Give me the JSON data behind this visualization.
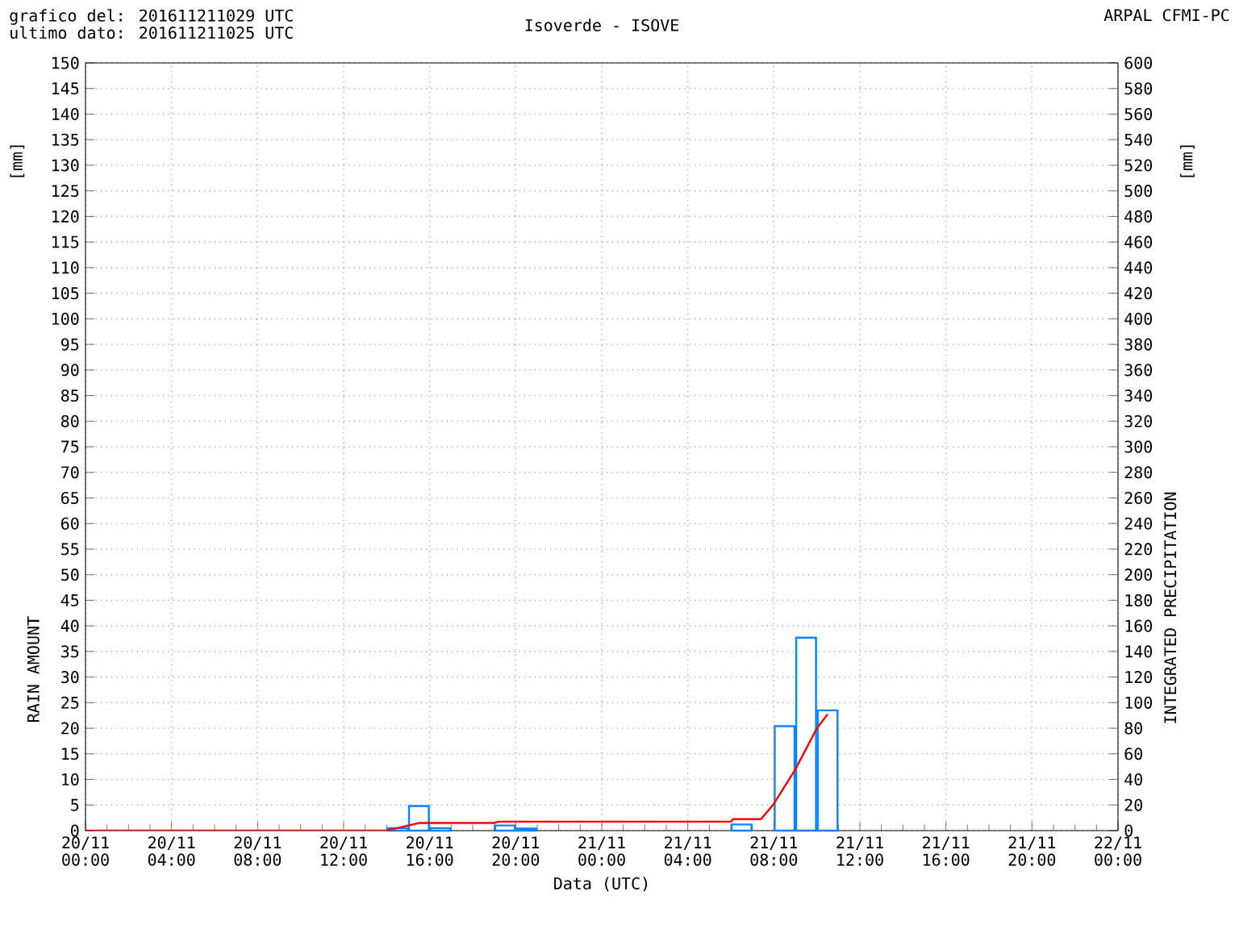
{
  "chart_data": {
    "type": "bar",
    "title": "Isoverde - ISOVE",
    "xlabel": "Data (UTC)",
    "ylabel": "RAIN AMOUNT",
    "y2label": "INTEGRATED PRECIPITATION",
    "annotations": [
      "grafico del: 201611211029 UTC",
      "ultimo dato: 201611211025 UTC",
      "ARPAL CFMI-PC",
      "[mm]",
      "[mm]"
    ],
    "xlim": [
      "2016-11-20T00:00",
      "2016-11-22T00:00"
    ],
    "xticks": [
      {
        "value": "2016-11-20T00:00",
        "label": "20/11 00:00"
      },
      {
        "value": "2016-11-20T04:00",
        "label": "20/11 04:00"
      },
      {
        "value": "2016-11-20T08:00",
        "label": "20/11 08:00"
      },
      {
        "value": "2016-11-20T12:00",
        "label": "20/11 12:00"
      },
      {
        "value": "2016-11-20T16:00",
        "label": "20/11 16:00"
      },
      {
        "value": "2016-11-20T20:00",
        "label": "20/11 20:00"
      },
      {
        "value": "2016-11-21T00:00",
        "label": "21/11 00:00"
      },
      {
        "value": "2016-11-21T04:00",
        "label": "21/11 04:00"
      },
      {
        "value": "2016-11-21T08:00",
        "label": "21/11 08:00"
      },
      {
        "value": "2016-11-21T12:00",
        "label": "21/11 12:00"
      },
      {
        "value": "2016-11-21T16:00",
        "label": "21/11 16:00"
      },
      {
        "value": "2016-11-21T20:00",
        "label": "21/11 20:00"
      },
      {
        "value": "2016-11-22T00:00",
        "label": "22/11 00:00"
      }
    ],
    "ylim": [
      0,
      150
    ],
    "yticks": [
      0,
      5,
      10,
      15,
      20,
      25,
      30,
      35,
      40,
      45,
      50,
      55,
      60,
      65,
      70,
      75,
      80,
      85,
      90,
      95,
      100,
      105,
      110,
      115,
      120,
      125,
      130,
      135,
      140,
      145,
      150
    ],
    "y2lim": [
      0,
      600
    ],
    "y2ticks": [
      0,
      20,
      40,
      60,
      80,
      100,
      120,
      140,
      160,
      180,
      200,
      220,
      240,
      260,
      280,
      300,
      320,
      340,
      360,
      380,
      400,
      420,
      440,
      460,
      480,
      500,
      520,
      540,
      560,
      580,
      600
    ],
    "grid": true,
    "series": [
      {
        "color": "#0a84ff",
        "x": [
          "2016-11-20T14:30",
          "2016-11-20T15:30",
          "2016-11-20T16:30",
          "2016-11-20T19:30",
          "2016-11-20T20:30",
          "2016-11-21T06:30",
          "2016-11-21T08:30",
          "2016-11-21T09:30",
          "2016-11-21T10:30"
        ],
        "values": [
          0.5,
          4.8,
          0.5,
          1.0,
          0.4,
          1.2,
          20.4,
          37.7,
          23.5
        ]
      },
      {
        "type": "line",
        "axis": "y2",
        "color": "#ff0000",
        "x": [
          "2016-11-20T00:00",
          "2016-11-20T14:00",
          "2016-11-20T15:00",
          "2016-11-20T15:30",
          "2016-11-20T19:00",
          "2016-11-20T19:12",
          "2016-11-21T06:00",
          "2016-11-21T06:06",
          "2016-11-21T07:24",
          "2016-11-21T08:00",
          "2016-11-21T09:00",
          "2016-11-21T10:00",
          "2016-11-21T10:30"
        ],
        "values": [
          0,
          0,
          4,
          6,
          6,
          7,
          7,
          9,
          9,
          21,
          48,
          80,
          91
        ]
      }
    ]
  }
}
